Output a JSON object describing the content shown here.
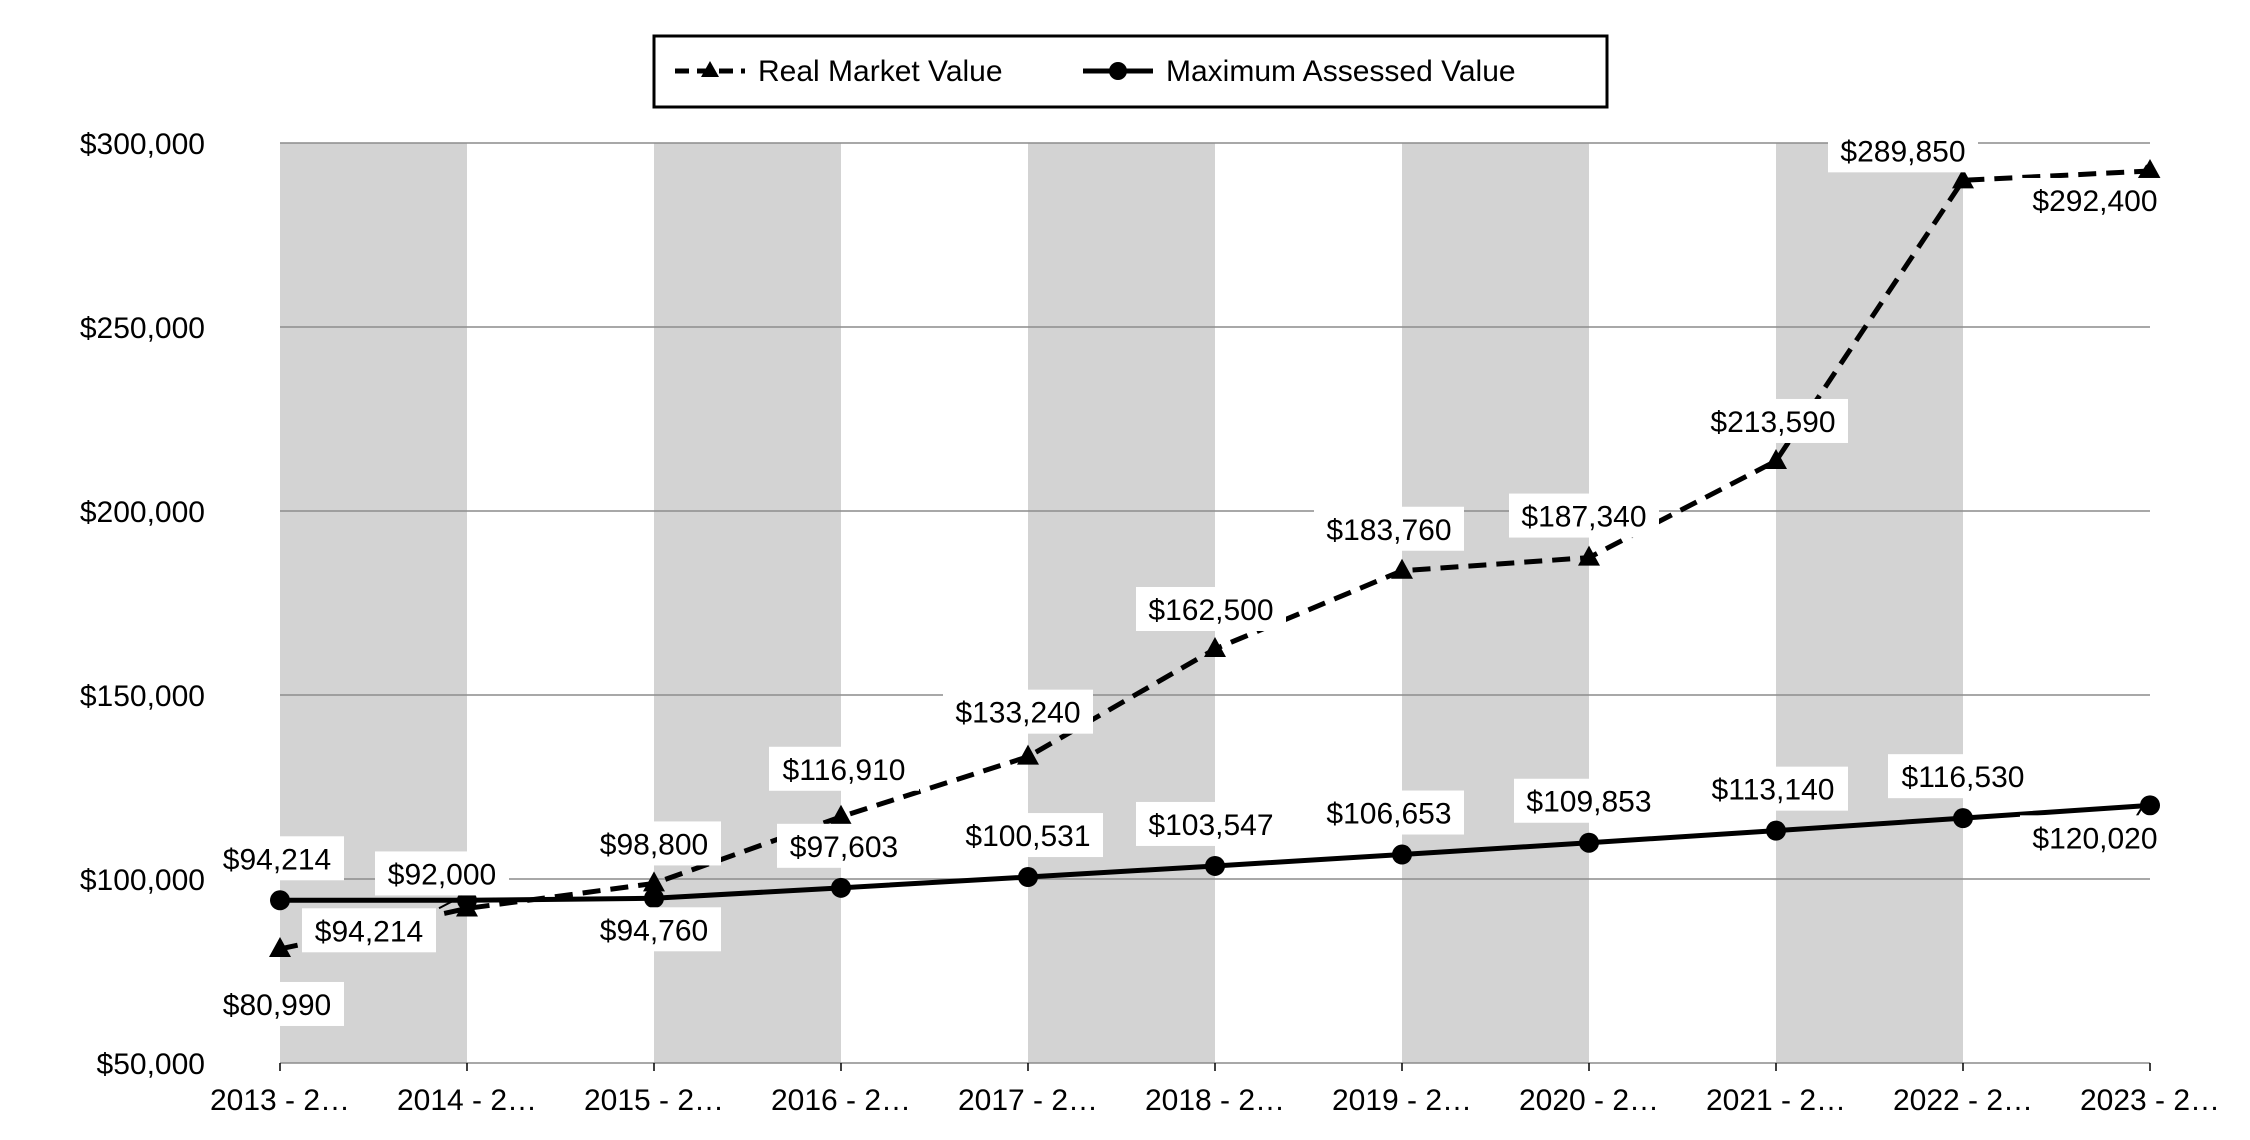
{
  "chart_data": {
    "type": "line",
    "title": "",
    "xlabel": "",
    "ylabel": "",
    "ylim": [
      50000,
      300000
    ],
    "yticks": [
      50000,
      100000,
      150000,
      200000,
      250000,
      300000
    ],
    "ytick_labels": [
      "$50,000",
      "$100,000",
      "$150,000",
      "$200,000",
      "$250,000",
      "$300,000"
    ],
    "grid": true,
    "alternating_band_color": "#d3d3d3",
    "legend_position": "top-center",
    "categories": [
      "2013 - 2…",
      "2014 - 2…",
      "2015 - 2…",
      "2016 - 2…",
      "2017 - 2…",
      "2018 - 2…",
      "2019 - 2…",
      "2020 - 2…",
      "2021 - 2…",
      "2022 - 2…",
      "2023 - 2…"
    ],
    "series": [
      {
        "name": "Real Market Value",
        "style": "dashed",
        "marker": "triangle",
        "color": "#000000",
        "values": [
          80990,
          92000,
          98800,
          116910,
          133240,
          162500,
          183760,
          187340,
          213590,
          289850,
          292400
        ],
        "labels": [
          "$80,990",
          "$92,000",
          "$98,800",
          "$116,910",
          "$133,240",
          "$162,500",
          "$183,760",
          "$187,340",
          "$213,590",
          "$289,850",
          "$292,400"
        ]
      },
      {
        "name": "Maximum Assessed Value",
        "style": "solid",
        "marker": "circle",
        "color": "#000000",
        "values": [
          94214,
          94214,
          94760,
          97603,
          100531,
          103547,
          106653,
          109853,
          113140,
          116530,
          120020
        ],
        "labels": [
          "$94,214",
          "$94,214",
          "$94,760",
          "$97,603",
          "$100,531",
          "$103,547",
          "$106,653",
          "$109,853",
          "$113,140",
          "$116,530",
          "$120,020"
        ]
      }
    ]
  }
}
